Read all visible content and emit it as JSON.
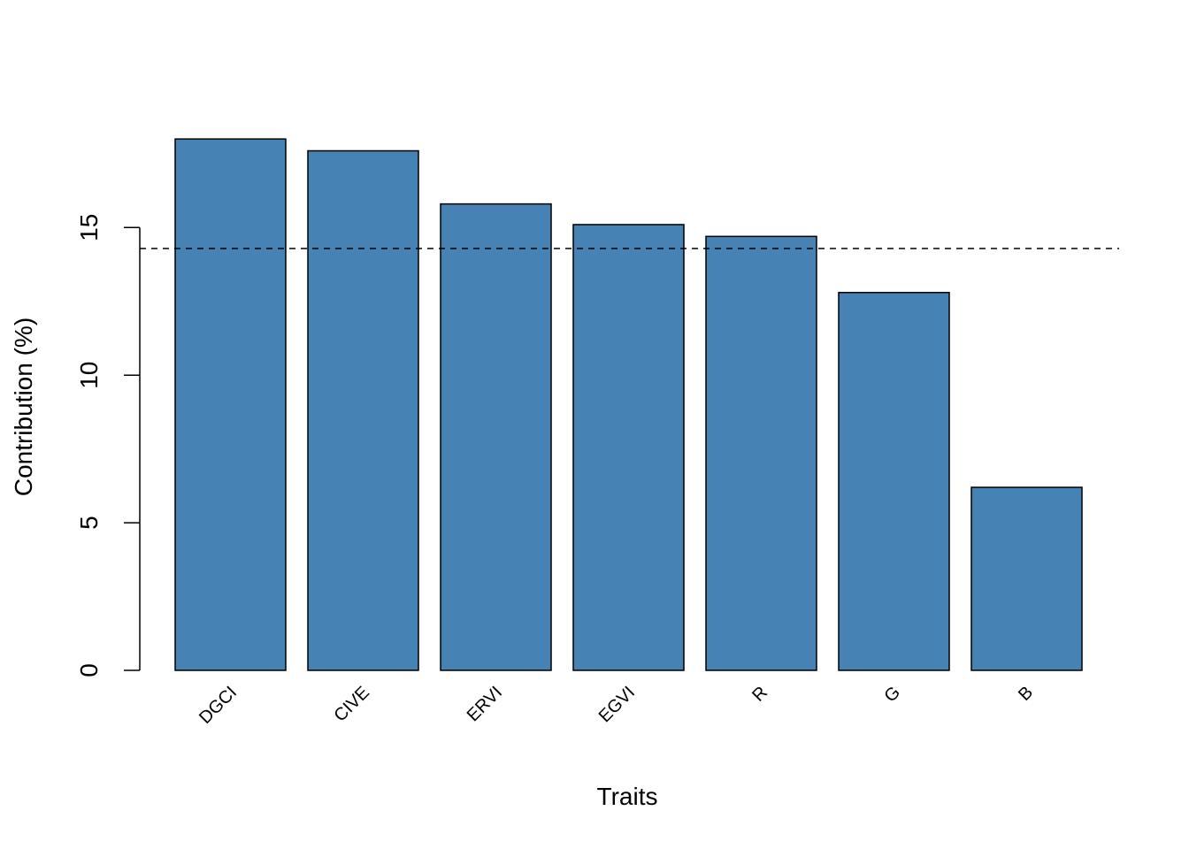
{
  "chart_data": {
    "type": "bar",
    "title": "",
    "xlabel": "Traits",
    "ylabel": "Contribution (%)",
    "categories": [
      "DGCI",
      "CIVE",
      "ERVI",
      "EGVI",
      "R",
      "G",
      "B"
    ],
    "values": [
      18.0,
      17.6,
      15.8,
      15.1,
      14.7,
      12.8,
      6.2
    ],
    "reference_line": {
      "value": 14.29,
      "style": "dashed",
      "color": "#000000"
    },
    "ylim": [
      0,
      18
    ],
    "yticks": [
      0,
      5,
      10,
      15
    ],
    "bar_color": "#4682B4",
    "bar_border": "#000000",
    "grid": false,
    "legend": "none"
  }
}
